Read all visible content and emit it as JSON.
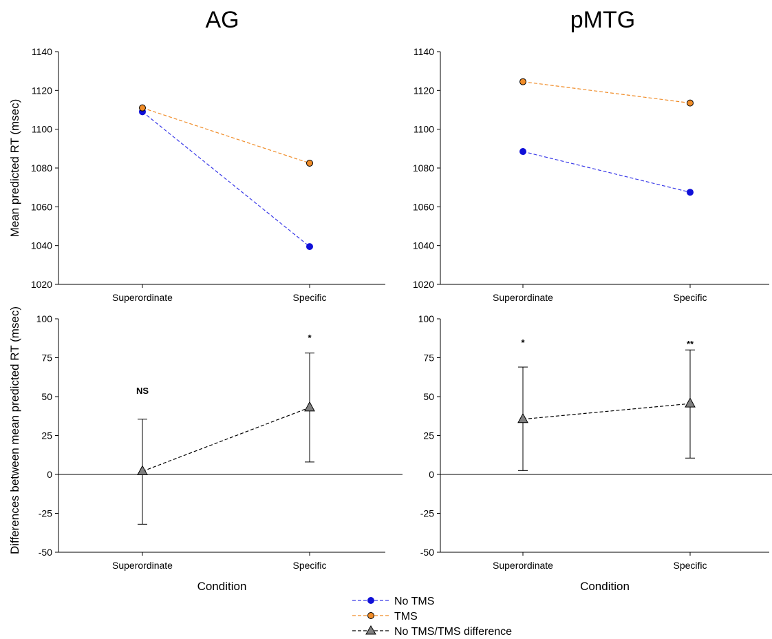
{
  "legend": {
    "entries": [
      {
        "label": "No TMS",
        "series_key": "no_tms"
      },
      {
        "label": "TMS",
        "series_key": "tms"
      },
      {
        "label": "No TMS/TMS difference",
        "series_key": "difference"
      }
    ]
  },
  "colors": {
    "no_tms": "#1010d8",
    "tms": "#f08c28",
    "tms_line": "#f08c28",
    "no_tms_line": "#3a3ae8",
    "difference": "#808080",
    "difference_line": "#000000"
  },
  "chart_data": [
    {
      "type": "line",
      "panel": "top-left",
      "title": "AG",
      "xlabel": "",
      "ylabel": "Mean predicted RT (msec)",
      "categories": [
        "Superordinate",
        "Specific"
      ],
      "ylim": [
        1020,
        1140
      ],
      "yticks": [
        1020,
        1040,
        1060,
        1080,
        1100,
        1120,
        1140
      ],
      "ytick_labels": [
        "1020",
        "1040",
        "1060",
        "1080",
        "1100",
        "1120",
        "1140"
      ],
      "series": [
        {
          "key": "no_tms",
          "name": "No TMS",
          "values": [
            1109,
            1039.5
          ]
        },
        {
          "key": "tms",
          "name": "TMS",
          "values": [
            1111,
            1082.5
          ]
        }
      ]
    },
    {
      "type": "line",
      "panel": "top-right",
      "title": "pMTG",
      "xlabel": "",
      "ylabel": "",
      "categories": [
        "Superordinate",
        "Specific"
      ],
      "ylim": [
        1020,
        1140
      ],
      "yticks": [
        1020,
        1040,
        1060,
        1080,
        1100,
        1120,
        1140
      ],
      "ytick_labels": [
        "1020",
        "1040",
        "1060",
        "1080",
        "1100",
        "1120",
        "1140"
      ],
      "series": [
        {
          "key": "no_tms",
          "name": "No TMS",
          "values": [
            1088.5,
            1067.5
          ]
        },
        {
          "key": "tms",
          "name": "TMS",
          "values": [
            1124.5,
            1113.5
          ]
        }
      ]
    },
    {
      "type": "line",
      "panel": "bottom-left",
      "title": "",
      "xlabel": "Condition",
      "ylabel": "Differences between mean predicted RT (msec)",
      "categories": [
        "Superordinate",
        "Specific"
      ],
      "ylim": [
        -50,
        100
      ],
      "yticks": [
        -50,
        -25,
        0,
        25,
        50,
        75,
        100
      ],
      "ytick_labels": [
        "-50",
        "-25",
        "0",
        "25",
        "50",
        "75",
        "100"
      ],
      "zero_line": true,
      "series": [
        {
          "key": "difference",
          "name": "No TMS/TMS difference",
          "values": [
            2,
            43
          ],
          "error_low": [
            -32,
            8
          ],
          "error_high": [
            35.5,
            78
          ]
        }
      ],
      "annotations": [
        {
          "category_index": 0,
          "y": 54,
          "text": "NS"
        },
        {
          "category_index": 1,
          "y": 88,
          "text": "*"
        }
      ]
    },
    {
      "type": "line",
      "panel": "bottom-right",
      "title": "",
      "xlabel": "Condition",
      "ylabel": "",
      "categories": [
        "Superordinate",
        "Specific"
      ],
      "ylim": [
        -50,
        100
      ],
      "yticks": [
        -50,
        -25,
        0,
        25,
        50,
        75,
        100
      ],
      "ytick_labels": [
        "-50",
        "-25",
        "0",
        "25",
        "50",
        "75",
        "100"
      ],
      "zero_line": true,
      "series": [
        {
          "key": "difference",
          "name": "No TMS/TMS difference",
          "values": [
            35.5,
            45.5
          ],
          "error_low": [
            2.5,
            10.5
          ],
          "error_high": [
            69,
            80
          ]
        }
      ],
      "annotations": [
        {
          "category_index": 0,
          "y": 85,
          "text": "*"
        },
        {
          "category_index": 1,
          "y": 84,
          "text": "**"
        }
      ]
    }
  ]
}
